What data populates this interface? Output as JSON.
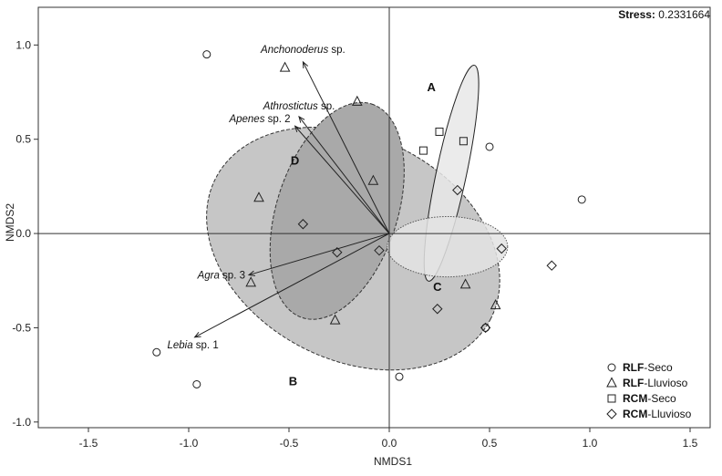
{
  "chart_data": {
    "type": "scatter",
    "title": "",
    "xlabel": "NMDS1",
    "ylabel": "NMDS2",
    "xlim": [
      -1.75,
      1.6
    ],
    "ylim": [
      -1.03,
      1.2
    ],
    "xticks": [
      -1.5,
      -1.0,
      -0.5,
      0.0,
      0.5,
      1.0,
      1.5
    ],
    "xtick_labels": [
      "-1.5",
      "-1.0",
      "-0.5",
      "0.0",
      "0.5",
      "1.0",
      "1.5"
    ],
    "yticks": [
      -1.0,
      -0.5,
      0.0,
      0.5,
      1.0
    ],
    "ytick_labels": [
      "-1.0",
      "-0.5",
      "0.0",
      "0.5",
      "1.0"
    ],
    "grid": false,
    "stress": {
      "label": "Stress:",
      "value": "0.2331664"
    },
    "series": [
      {
        "name": {
          "bold": "RLF",
          "rest": "-Seco"
        },
        "marker": "circle",
        "points": [
          [
            -0.91,
            0.95
          ],
          [
            -1.16,
            -0.63
          ],
          [
            -0.96,
            -0.8
          ],
          [
            0.05,
            -0.76
          ],
          [
            0.5,
            0.46
          ],
          [
            0.96,
            0.18
          ],
          [
            0.48,
            -0.5
          ]
        ]
      },
      {
        "name": {
          "bold": "RLF",
          "rest": "-Lluvioso"
        },
        "marker": "triangle",
        "points": [
          [
            -0.52,
            0.88
          ],
          [
            -0.16,
            0.7
          ],
          [
            -0.65,
            0.19
          ],
          [
            -0.08,
            0.28
          ],
          [
            -0.69,
            -0.26
          ],
          [
            -0.27,
            -0.46
          ],
          [
            0.38,
            -0.27
          ],
          [
            0.53,
            -0.38
          ]
        ]
      },
      {
        "name": {
          "bold": "RCM",
          "rest": "-Seco"
        },
        "marker": "square",
        "points": [
          [
            0.25,
            0.54
          ],
          [
            0.37,
            0.49
          ],
          [
            0.17,
            0.44
          ]
        ]
      },
      {
        "name": {
          "bold": "RCM",
          "rest": "-Lluvioso"
        },
        "marker": "diamond",
        "points": [
          [
            -0.43,
            0.05
          ],
          [
            -0.26,
            -0.1
          ],
          [
            -0.05,
            -0.09
          ],
          [
            0.34,
            0.23
          ],
          [
            0.56,
            -0.08
          ],
          [
            0.81,
            -0.17
          ],
          [
            0.24,
            -0.4
          ],
          [
            0.48,
            -0.5
          ]
        ]
      }
    ],
    "vectors": [
      {
        "label_italic": "Anchonoderus",
        "label_rest": " sp.",
        "x": -0.43,
        "y": 0.91
      },
      {
        "label_italic": "Athrostictus",
        "label_rest": " sp.",
        "x": -0.45,
        "y": 0.62
      },
      {
        "label_italic": "Apenes",
        "label_rest": " sp. 2",
        "x": -0.47,
        "y": 0.57
      },
      {
        "label_italic": "Agra",
        "label_rest": " sp. 3",
        "x": -0.7,
        "y": -0.22
      },
      {
        "label_italic": "Lebia",
        "label_rest": " sp. 1",
        "x": -0.97,
        "y": -0.55
      }
    ],
    "groups": [
      {
        "label": "A",
        "label_pos": [
          0.21,
          0.78
        ],
        "cx": 0.31,
        "cy": 0.32,
        "rx": 0.55,
        "ry": 0.08,
        "angle_deg": -78,
        "fill": "#e8e8e8",
        "stroke": "#222222",
        "dash": "none"
      },
      {
        "label": "B",
        "label_pos": [
          -0.48,
          -0.78
        ],
        "cx": -0.18,
        "cy": -0.08,
        "rx": 0.77,
        "ry": 0.59,
        "angle_deg": 27,
        "fill": "#c6c6c6",
        "stroke": "#333333",
        "dash": "4,2"
      },
      {
        "label": "C",
        "label_pos": [
          0.24,
          -0.28
        ],
        "cx": 0.29,
        "cy": -0.07,
        "rx": 0.3,
        "ry": 0.16,
        "angle_deg": 0,
        "fill": "#e3e3e3",
        "stroke": "#555555",
        "dash": "1.5,1.5"
      },
      {
        "label": "D",
        "label_pos": [
          -0.47,
          0.39
        ],
        "cx": -0.26,
        "cy": 0.12,
        "rx": 0.56,
        "ry": 0.32,
        "angle_deg": -72,
        "fill": "#a9a9a9",
        "stroke": "#333333",
        "dash": "4,2"
      }
    ]
  }
}
